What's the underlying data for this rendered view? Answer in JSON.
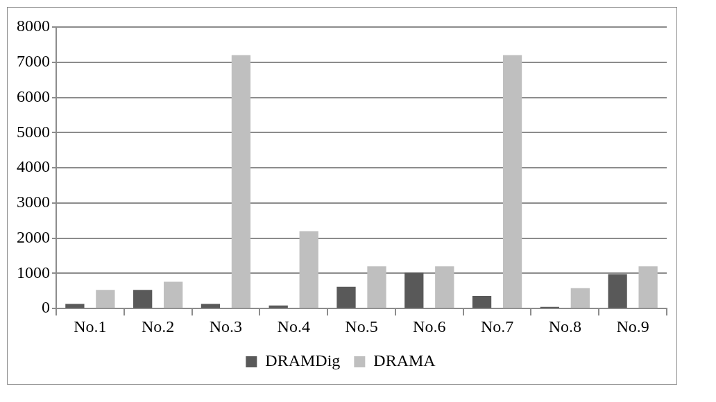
{
  "chart_data": {
    "type": "bar",
    "categories": [
      "No.1",
      "No.2",
      "No.3",
      "No.4",
      "No.5",
      "No.6",
      "No.7",
      "No.8",
      "No.9"
    ],
    "series": [
      {
        "name": "DRAMDig",
        "color": "#595959",
        "values": [
          130,
          530,
          130,
          90,
          620,
          1020,
          360,
          50,
          980
        ]
      },
      {
        "name": "DRAMA",
        "color": "#bfbfbf",
        "values": [
          530,
          760,
          7200,
          2200,
          1200,
          1200,
          7200,
          580,
          1200
        ]
      }
    ],
    "ylim": [
      0,
      8000
    ],
    "yticks": [
      0,
      1000,
      2000,
      3000,
      4000,
      5000,
      6000,
      7000,
      8000
    ],
    "grid": "y",
    "legend": "bottom"
  }
}
